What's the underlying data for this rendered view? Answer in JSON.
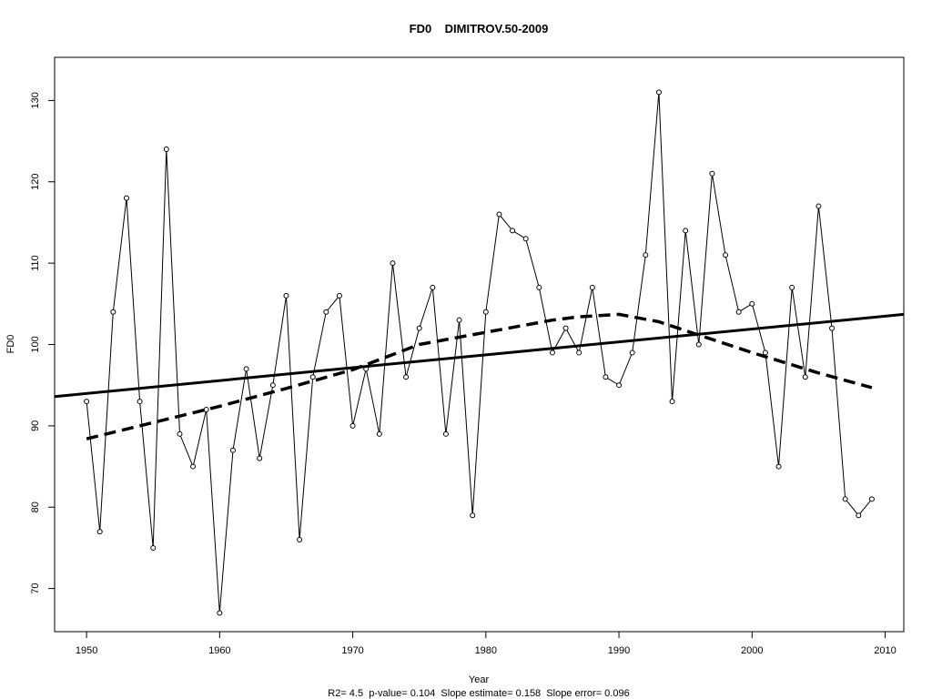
{
  "chart_data": {
    "type": "line",
    "title": "FD0    DIMITROV.50-2009",
    "xlabel": "Year",
    "ylabel": "FD0",
    "subtitle": "R2= 4.5  p-value= 0.104  Slope estimate= 0.158  Slope error= 0.096",
    "xlim": [
      1947.6,
      2011.4
    ],
    "ylim": [
      64.7,
      135.3
    ],
    "x_ticks": [
      1950,
      1960,
      1970,
      1980,
      1990,
      2000,
      2010
    ],
    "y_ticks": [
      70,
      80,
      90,
      100,
      110,
      120,
      130
    ],
    "grid": false,
    "series": [
      {
        "style": "line-with-open-points",
        "color": "#000000",
        "x": [
          1950,
          1951,
          1952,
          1953,
          1954,
          1955,
          1956,
          1957,
          1958,
          1959,
          1960,
          1961,
          1962,
          1963,
          1964,
          1965,
          1966,
          1967,
          1968,
          1969,
          1970,
          1971,
          1972,
          1973,
          1974,
          1975,
          1976,
          1977,
          1978,
          1979,
          1980,
          1981,
          1982,
          1983,
          1984,
          1985,
          1986,
          1987,
          1988,
          1989,
          1990,
          1991,
          1992,
          1993,
          1994,
          1995,
          1996,
          1997,
          1998,
          1999,
          2000,
          2001,
          2002,
          2003,
          2004,
          2005,
          2006,
          2007,
          2008,
          2009
        ],
        "values": [
          93,
          77,
          104,
          118,
          93,
          75,
          124,
          89,
          85,
          92,
          67,
          87,
          97,
          86,
          95,
          106,
          76,
          96,
          104,
          106,
          90,
          97,
          89,
          110,
          96,
          102,
          107,
          89,
          103,
          79,
          104,
          116,
          114,
          113,
          107,
          99,
          102,
          99,
          107,
          96,
          95,
          99,
          111,
          131,
          93,
          114,
          100,
          121,
          111,
          104,
          105,
          99,
          85,
          107,
          96,
          117,
          102,
          81,
          79,
          81
        ]
      },
      {
        "style": "solid-thick",
        "kind": "linear trend",
        "color": "#000000",
        "x": [
          1947.6,
          2011.4
        ],
        "values": [
          93.6,
          103.7
        ]
      },
      {
        "style": "dashed-thick",
        "kind": "smooth trend",
        "color": "#000000",
        "x": [
          1950,
          1955,
          1960,
          1965,
          1970,
          1975,
          1980,
          1985,
          1987,
          1990,
          1993,
          1995,
          2000,
          2005,
          2009
        ],
        "values": [
          88.4,
          90.4,
          92.4,
          94.6,
          96.9,
          100.0,
          101.5,
          103.0,
          103.4,
          103.7,
          102.8,
          101.7,
          99.0,
          96.5,
          94.7
        ]
      }
    ]
  }
}
